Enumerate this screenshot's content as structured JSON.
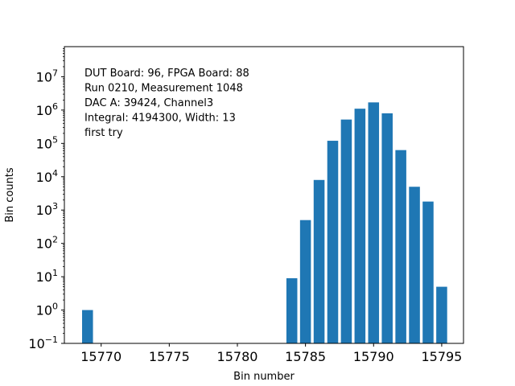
{
  "chart_data": {
    "type": "bar",
    "xlabel": "Bin number",
    "ylabel": "Bin counts",
    "y_scale": "log",
    "ylim": [
      0.1,
      80000000
    ],
    "xlim": [
      15767.3,
      15796.6
    ],
    "bar_color": "#1f77b4",
    "grid": false,
    "x_ticks": [
      15770,
      15775,
      15780,
      15785,
      15790,
      15795
    ],
    "y_ticks": [
      {
        "value": 0.1,
        "base": "10",
        "exp": "−1"
      },
      {
        "value": 1,
        "base": "10",
        "exp": "0"
      },
      {
        "value": 10,
        "base": "10",
        "exp": "1"
      },
      {
        "value": 100,
        "base": "10",
        "exp": "2"
      },
      {
        "value": 1000,
        "base": "10",
        "exp": "3"
      },
      {
        "value": 10000,
        "base": "10",
        "exp": "4"
      },
      {
        "value": 100000,
        "base": "10",
        "exp": "5"
      },
      {
        "value": 1000000,
        "base": "10",
        "exp": "6"
      },
      {
        "value": 10000000,
        "base": "10",
        "exp": "7"
      }
    ],
    "annotation_lines": [
      "DUT Board: 96, FPGA Board: 88",
      "Run 0210, Measurement 1048",
      "DAC A: 39424, Channel3",
      "Integral: 4194300, Width: 13",
      "first try"
    ],
    "bars": [
      {
        "x": 15769,
        "y": 1
      },
      {
        "x": 15784,
        "y": 9
      },
      {
        "x": 15785,
        "y": 500
      },
      {
        "x": 15786,
        "y": 8000
      },
      {
        "x": 15787,
        "y": 120000
      },
      {
        "x": 15788,
        "y": 520000
      },
      {
        "x": 15789,
        "y": 1100000
      },
      {
        "x": 15790,
        "y": 1700000
      },
      {
        "x": 15791,
        "y": 800000
      },
      {
        "x": 15792,
        "y": 63000
      },
      {
        "x": 15793,
        "y": 5000
      },
      {
        "x": 15794,
        "y": 1800
      },
      {
        "x": 15795,
        "y": 5
      }
    ]
  }
}
